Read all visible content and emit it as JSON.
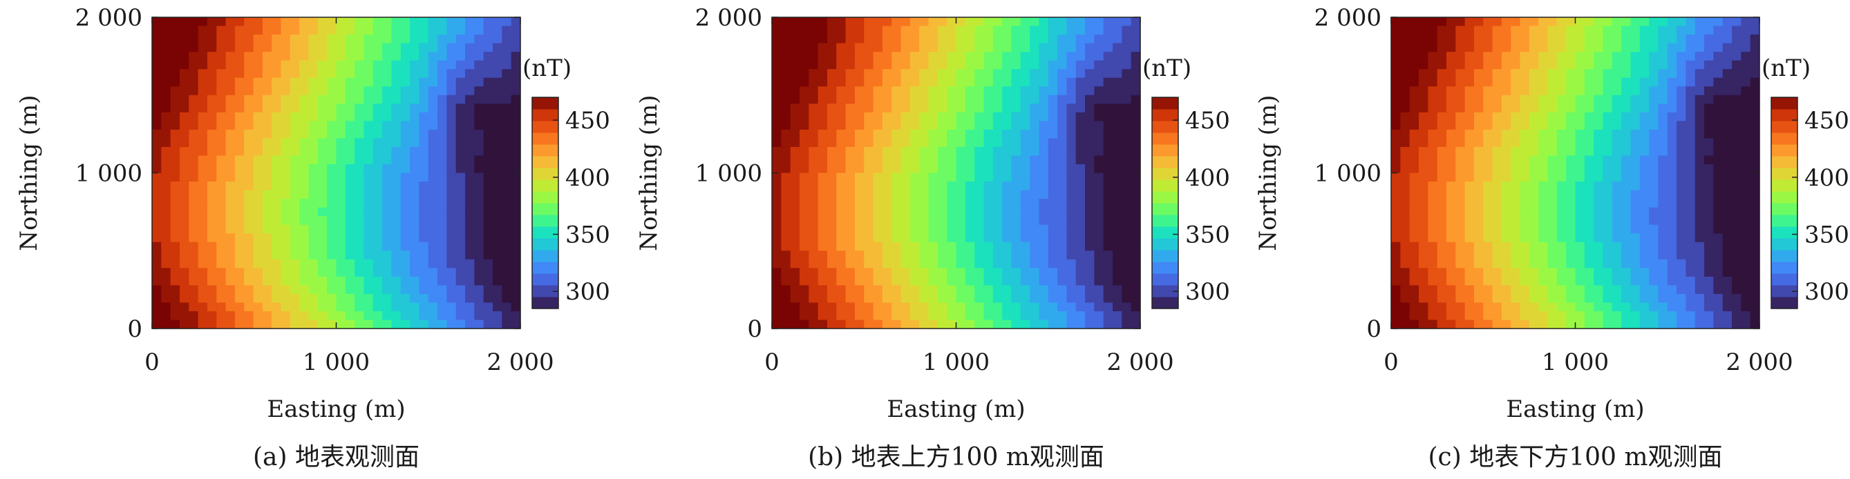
{
  "chart_data": [
    {
      "type": "heatmap",
      "caption": "(a) 地表观测面",
      "xlabel": "Easting (m)",
      "ylabel": "Northing (m)",
      "xlim": [
        0,
        2000
      ],
      "ylim": [
        0,
        2000
      ],
      "x_ticks": [
        0,
        1000,
        2000
      ],
      "x_tick_labels": [
        "0",
        "1 000",
        "2 000"
      ],
      "y_ticks": [
        0,
        1000,
        2000
      ],
      "y_tick_labels": [
        "0",
        "1 000",
        "2 000"
      ],
      "colorbar": {
        "unit_label": "(nT)",
        "range": [
          285,
          470
        ],
        "ticks": [
          300,
          350,
          400,
          450
        ],
        "tick_labels": [
          "300",
          "350",
          "400",
          "450"
        ],
        "colormap": "turbo"
      },
      "variant": 0
    },
    {
      "type": "heatmap",
      "caption": "(b) 地表上方100 m观测面",
      "xlabel": "Easting (m)",
      "ylabel": "Northing (m)",
      "xlim": [
        0,
        2000
      ],
      "ylim": [
        0,
        2000
      ],
      "x_ticks": [
        0,
        1000,
        2000
      ],
      "x_tick_labels": [
        "0",
        "1 000",
        "2 000"
      ],
      "y_ticks": [
        0,
        1000,
        2000
      ],
      "y_tick_labels": [
        "0",
        "1 000",
        "2 000"
      ],
      "colorbar": {
        "unit_label": "(nT)",
        "range": [
          285,
          470
        ],
        "ticks": [
          300,
          350,
          400,
          450
        ],
        "tick_labels": [
          "300",
          "350",
          "400",
          "450"
        ],
        "colormap": "turbo"
      },
      "variant": 1
    },
    {
      "type": "heatmap",
      "caption": "(c) 地表下方100 m观测面",
      "xlabel": "Easting (m)",
      "ylabel": "Northing (m)",
      "xlim": [
        0,
        2000
      ],
      "ylim": [
        0,
        2000
      ],
      "x_ticks": [
        0,
        1000,
        2000
      ],
      "x_tick_labels": [
        "0",
        "1 000",
        "2 000"
      ],
      "y_ticks": [
        0,
        1000,
        2000
      ],
      "y_tick_labels": [
        "0",
        "1 000",
        "2 000"
      ],
      "colorbar": {
        "unit_label": "(nT)",
        "range": [
          285,
          470
        ],
        "ticks": [
          300,
          350,
          400,
          450
        ],
        "tick_labels": [
          "300",
          "350",
          "400",
          "450"
        ],
        "colormap": "turbo"
      },
      "variant": 2
    }
  ]
}
